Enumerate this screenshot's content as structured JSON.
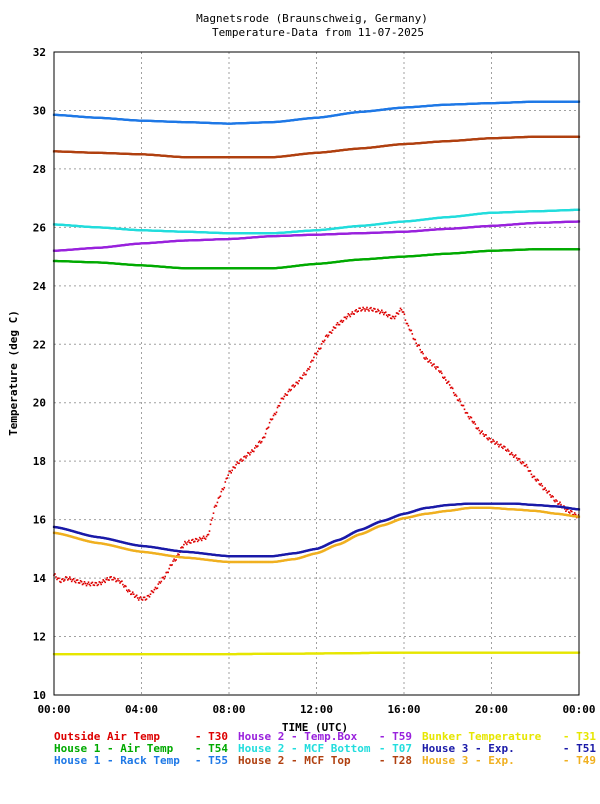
{
  "chart_data": {
    "type": "scatter",
    "title": "Magnetsrode (Braunschweig, Germany)",
    "subtitle": "Temperature-Data from 11-07-2025",
    "xlabel": "TIME (UTC)",
    "ylabel": "Temperature (deg C)",
    "xlim": [
      0,
      24
    ],
    "ylim": [
      10,
      32
    ],
    "xticks": [
      "00:00",
      "04:00",
      "08:00",
      "12:00",
      "16:00",
      "20:00",
      "00:00"
    ],
    "yticks": [
      "10",
      "12",
      "14",
      "16",
      "18",
      "20",
      "22",
      "24",
      "26",
      "28",
      "30",
      "32"
    ],
    "grid": true,
    "legend_position": "bottom",
    "series": [
      {
        "name": "Outside Air Temp",
        "code": "T30",
        "color": "#dd0000",
        "x": [
          0,
          0.3,
          0.6,
          1.0,
          1.5,
          2.0,
          2.6,
          3.0,
          3.5,
          3.9,
          4.2,
          4.6,
          5.0,
          5.5,
          6.0,
          6.5,
          7.0,
          7.4,
          7.7,
          8.0,
          8.5,
          9.0,
          9.5,
          10.0,
          10.5,
          11.0,
          11.5,
          12.0,
          12.5,
          13.0,
          13.5,
          14.0,
          14.5,
          15.0,
          15.5,
          15.9,
          16.2,
          16.6,
          17.0,
          17.5,
          18.0,
          18.5,
          19.0,
          19.5,
          20.0,
          20.5,
          21.0,
          21.5,
          22.0,
          22.5,
          23.0,
          23.5,
          24.0
        ],
        "y": [
          14.1,
          13.9,
          14.0,
          13.9,
          13.8,
          13.8,
          14.0,
          13.9,
          13.5,
          13.3,
          13.3,
          13.6,
          14.0,
          14.6,
          15.2,
          15.3,
          15.4,
          16.5,
          17.0,
          17.6,
          18.0,
          18.3,
          18.7,
          19.5,
          20.2,
          20.6,
          21.0,
          21.7,
          22.3,
          22.7,
          23.0,
          23.2,
          23.2,
          23.1,
          22.9,
          23.2,
          22.6,
          22.0,
          21.5,
          21.2,
          20.7,
          20.1,
          19.5,
          19.0,
          18.7,
          18.5,
          18.2,
          17.9,
          17.4,
          17.0,
          16.6,
          16.3,
          16.1
        ]
      },
      {
        "name": "House 1 - Air  Temp",
        "code": "T54",
        "color": "#00aa00",
        "x": [
          0,
          2,
          4,
          6,
          8,
          10,
          12,
          14,
          16,
          18,
          20,
          22,
          24
        ],
        "y": [
          24.85,
          24.8,
          24.7,
          24.6,
          24.6,
          24.6,
          24.75,
          24.9,
          25.0,
          25.1,
          25.2,
          25.25,
          25.25
        ]
      },
      {
        "name": "House 1 - Rack Temp",
        "code": "T55",
        "color": "#1e78e6",
        "x": [
          0,
          2,
          4,
          6,
          8,
          10,
          12,
          14,
          16,
          18,
          20,
          22,
          24
        ],
        "y": [
          29.85,
          29.75,
          29.65,
          29.6,
          29.55,
          29.6,
          29.75,
          29.95,
          30.1,
          30.2,
          30.25,
          30.3,
          30.3
        ]
      },
      {
        "name": "House 2 - Temp.Box",
        "code": "T59",
        "color": "#9922dd",
        "x": [
          0,
          2,
          4,
          6,
          8,
          10,
          12,
          14,
          16,
          18,
          20,
          22,
          24
        ],
        "y": [
          25.2,
          25.3,
          25.45,
          25.55,
          25.6,
          25.7,
          25.75,
          25.8,
          25.85,
          25.95,
          26.05,
          26.15,
          26.2
        ]
      },
      {
        "name": "House 2 - MCF Bottom",
        "code": "T07",
        "color": "#22dddd",
        "x": [
          0,
          2,
          4,
          6,
          8,
          10,
          12,
          14,
          16,
          18,
          20,
          22,
          24
        ],
        "y": [
          26.1,
          26.0,
          25.9,
          25.85,
          25.8,
          25.8,
          25.9,
          26.05,
          26.2,
          26.35,
          26.5,
          26.55,
          26.6
        ]
      },
      {
        "name": "House 2 - MCF Top",
        "code": "T28",
        "color": "#b04010",
        "x": [
          0,
          2,
          4,
          6,
          8,
          10,
          12,
          14,
          16,
          18,
          20,
          22,
          24
        ],
        "y": [
          28.6,
          28.55,
          28.5,
          28.4,
          28.4,
          28.4,
          28.55,
          28.7,
          28.85,
          28.95,
          29.05,
          29.1,
          29.1
        ]
      },
      {
        "name": "Bunker Temperature",
        "code": "T31",
        "color": "#e6e600",
        "x": [
          0,
          4,
          8,
          12,
          16,
          20,
          24
        ],
        "y": [
          11.4,
          11.4,
          11.4,
          11.42,
          11.45,
          11.45,
          11.45
        ]
      },
      {
        "name": "House 3 - Exp.",
        "code": "T51",
        "color": "#1a1aa8",
        "x": [
          0,
          2,
          4,
          6,
          8,
          10,
          11,
          12,
          13,
          14,
          15,
          16,
          17,
          18,
          19,
          20,
          21,
          22,
          23,
          24
        ],
        "y": [
          15.75,
          15.4,
          15.1,
          14.9,
          14.75,
          14.75,
          14.85,
          15.0,
          15.3,
          15.65,
          15.95,
          16.2,
          16.4,
          16.5,
          16.55,
          16.55,
          16.55,
          16.5,
          16.45,
          16.35
        ]
      },
      {
        "name": "House 3 - Exp.",
        "code": "T49",
        "color": "#f0b020",
        "x": [
          0,
          2,
          4,
          6,
          8,
          10,
          11,
          12,
          13,
          14,
          15,
          16,
          17,
          18,
          19,
          20,
          21,
          22,
          23,
          24
        ],
        "y": [
          15.55,
          15.2,
          14.9,
          14.7,
          14.55,
          14.55,
          14.65,
          14.85,
          15.15,
          15.5,
          15.8,
          16.05,
          16.2,
          16.3,
          16.4,
          16.4,
          16.35,
          16.3,
          16.2,
          16.1
        ]
      }
    ],
    "legend_order": [
      0,
      3,
      6,
      1,
      4,
      7,
      2,
      5,
      8
    ]
  }
}
